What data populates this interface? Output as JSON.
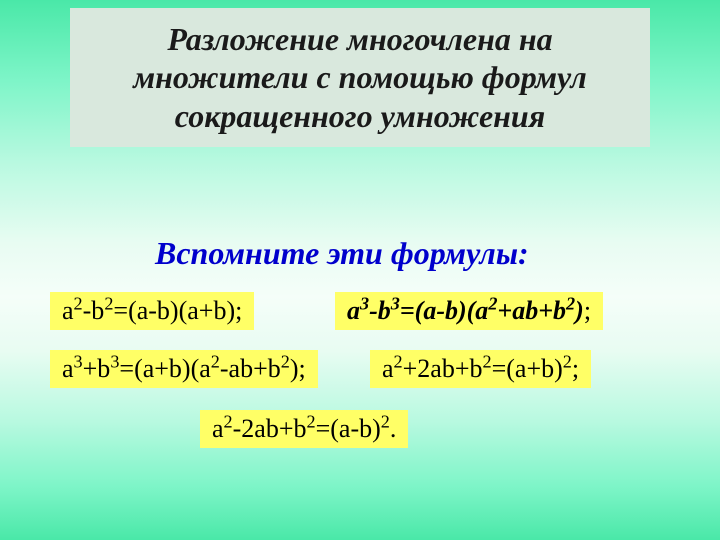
{
  "slide": {
    "title": "Разложение многочлена на множители с помощью формул сокращенного умножения",
    "subtitle": "Вспомните эти формулы:",
    "formulas": {
      "diff_squares": "a²-b²=(a-b)(a+b);",
      "diff_cubes": "a³-b³=(a-b)(a²+ab+b²);",
      "sum_cubes": "a³+b³=(a+b)(a²-ab+b²);",
      "square_sum": "a²+2ab+b²=(a+b)²;",
      "square_diff": "a²-2ab+b²=(a-b)²."
    },
    "colors": {
      "title_bg": "#d9e8dd",
      "title_text": "#1a1a1a",
      "subtitle_text": "#0000cc",
      "formula_bg": "#ffff66",
      "formula_text": "#000000",
      "bg_gradient_top": "#4ae8a8",
      "bg_gradient_mid": "#f5fef9"
    },
    "typography": {
      "title_fontsize": 32,
      "subtitle_fontsize": 32,
      "formula_fontsize": 26,
      "font_family": "Times New Roman"
    }
  }
}
